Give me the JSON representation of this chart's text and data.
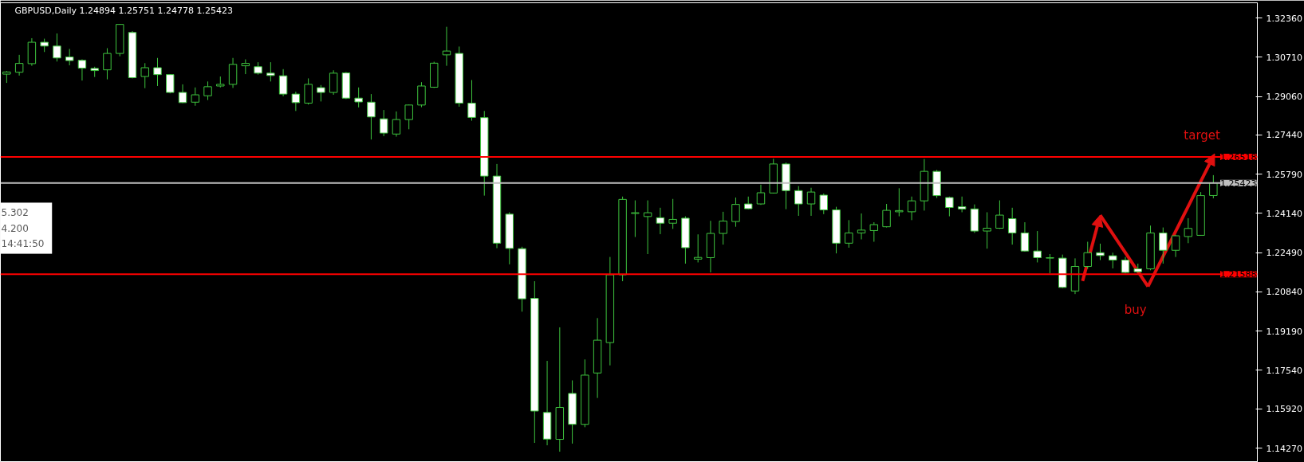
{
  "chart_data": {
    "type": "candlestick",
    "title": "GBPUSD,Daily  1.24894 1.25751 1.24778 1.25423",
    "categories": [
      null,
      null,
      null,
      null,
      null,
      null,
      null,
      null,
      null,
      null,
      null,
      null,
      null,
      null,
      null,
      null,
      null,
      null,
      null,
      null,
      null,
      null,
      null,
      null,
      null,
      null,
      null,
      null,
      null,
      null,
      null,
      null,
      null,
      null,
      null,
      null,
      null,
      null,
      null,
      null,
      null,
      null,
      null,
      null,
      null,
      null,
      null,
      null,
      null,
      null,
      null,
      null,
      null,
      null,
      null,
      null,
      null,
      null,
      null,
      null,
      null,
      null,
      null,
      null,
      null,
      null,
      null,
      null,
      null,
      null,
      null,
      null,
      null,
      null,
      null,
      null,
      null,
      null,
      null,
      null,
      null,
      null,
      null,
      null,
      null,
      null,
      null,
      null,
      null,
      null,
      null,
      null,
      null,
      null,
      null,
      null,
      null,
      null,
      null,
      null
    ],
    "ohlc": [
      [
        1.3,
        1.3013,
        1.2963,
        1.3009
      ],
      [
        1.3008,
        1.3081,
        1.2994,
        1.3045
      ],
      [
        1.3044,
        1.3151,
        1.3035,
        1.3134
      ],
      [
        1.3134,
        1.3149,
        1.3093,
        1.3118
      ],
      [
        1.3118,
        1.3171,
        1.3053,
        1.3068
      ],
      [
        1.3072,
        1.3106,
        1.3037,
        1.3057
      ],
      [
        1.3058,
        1.3062,
        1.2973,
        1.3025
      ],
      [
        1.3024,
        1.3031,
        1.2988,
        1.3015
      ],
      [
        1.3018,
        1.3109,
        1.2978,
        1.3087
      ],
      [
        1.3087,
        1.3211,
        1.3075,
        1.3209
      ],
      [
        1.3175,
        1.3181,
        1.2982,
        1.2985
      ],
      [
        1.299,
        1.3046,
        1.2941,
        1.3027
      ],
      [
        1.3027,
        1.3068,
        1.295,
        1.2998
      ],
      [
        1.2998,
        1.3,
        1.2919,
        1.2923
      ],
      [
        1.2923,
        1.2957,
        1.2878,
        1.288
      ],
      [
        1.2882,
        1.2944,
        1.2867,
        1.2913
      ],
      [
        1.2909,
        1.2969,
        1.2891,
        1.2947
      ],
      [
        1.295,
        1.299,
        1.2944,
        1.2957
      ],
      [
        1.2957,
        1.3068,
        1.2942,
        1.3041
      ],
      [
        1.3035,
        1.3062,
        1.3,
        1.3045
      ],
      [
        1.3031,
        1.305,
        1.2998,
        1.3004
      ],
      [
        1.3004,
        1.305,
        1.2969,
        1.2994
      ],
      [
        1.2993,
        1.3021,
        1.2907,
        1.2916
      ],
      [
        1.2916,
        1.2926,
        1.2845,
        1.288
      ],
      [
        1.2878,
        1.2982,
        1.2872,
        1.2957
      ],
      [
        1.2943,
        1.2954,
        1.2885,
        1.2923
      ],
      [
        1.2923,
        1.3016,
        1.2913,
        1.3004
      ],
      [
        1.3005,
        1.3009,
        1.2895,
        1.2899
      ],
      [
        1.2899,
        1.2944,
        1.286,
        1.2883
      ],
      [
        1.2882,
        1.2916,
        1.2725,
        1.282
      ],
      [
        1.2812,
        1.2849,
        1.2739,
        1.2752
      ],
      [
        1.2748,
        1.2843,
        1.2737,
        1.2809
      ],
      [
        1.2809,
        1.2872,
        1.2768,
        1.287
      ],
      [
        1.287,
        1.2966,
        1.2861,
        1.295
      ],
      [
        1.2945,
        1.3052,
        1.2942,
        1.3046
      ],
      [
        1.3081,
        1.3199,
        1.3035,
        1.3097
      ],
      [
        1.3087,
        1.3116,
        1.2863,
        1.2878
      ],
      [
        1.2878,
        1.2975,
        1.2804,
        1.2818
      ],
      [
        1.2817,
        1.2845,
        1.2489,
        1.2571
      ],
      [
        1.2571,
        1.2622,
        1.2268,
        1.2289
      ],
      [
        1.2411,
        1.2419,
        1.22,
        1.2267
      ],
      [
        1.2266,
        1.2274,
        1.2001,
        1.2055
      ],
      [
        1.2057,
        1.2129,
        1.1449,
        1.1583
      ],
      [
        1.1577,
        1.1794,
        1.1439,
        1.1465
      ],
      [
        1.1464,
        1.1935,
        1.1412,
        1.1598
      ],
      [
        1.1657,
        1.1712,
        1.1446,
        1.1527
      ],
      [
        1.1527,
        1.18,
        1.1515,
        1.1734
      ],
      [
        1.1743,
        1.1974,
        1.1638,
        1.1881
      ],
      [
        1.1871,
        1.2231,
        1.1775,
        1.2156
      ],
      [
        1.2156,
        1.2485,
        1.2129,
        1.2473
      ],
      [
        1.2414,
        1.2469,
        1.2315,
        1.2417
      ],
      [
        1.2401,
        1.2469,
        1.2243,
        1.2417
      ],
      [
        1.2396,
        1.2438,
        1.2327,
        1.2373
      ],
      [
        1.2373,
        1.2475,
        1.2349,
        1.2389
      ],
      [
        1.2394,
        1.2402,
        1.2203,
        1.227
      ],
      [
        1.2222,
        1.2326,
        1.2208,
        1.2229
      ],
      [
        1.2228,
        1.2383,
        1.2166,
        1.233
      ],
      [
        1.233,
        1.2421,
        1.2283,
        1.2382
      ],
      [
        1.238,
        1.2481,
        1.2358,
        1.2452
      ],
      [
        1.2454,
        1.2485,
        1.2432,
        1.2434
      ],
      [
        1.2454,
        1.2535,
        1.245,
        1.2501
      ],
      [
        1.25,
        1.2644,
        1.2498,
        1.2622
      ],
      [
        1.2622,
        1.2628,
        1.2432,
        1.251
      ],
      [
        1.251,
        1.2529,
        1.2404,
        1.2454
      ],
      [
        1.2454,
        1.2522,
        1.2404,
        1.2504
      ],
      [
        1.2491,
        1.2498,
        1.2411,
        1.2429
      ],
      [
        1.2429,
        1.2442,
        1.2246,
        1.2289
      ],
      [
        1.2289,
        1.2386,
        1.227,
        1.2332
      ],
      [
        1.2332,
        1.2414,
        1.2305,
        1.2344
      ],
      [
        1.2342,
        1.2377,
        1.2295,
        1.2367
      ],
      [
        1.2358,
        1.2454,
        1.2355,
        1.2427
      ],
      [
        1.2421,
        1.252,
        1.2402,
        1.2426
      ],
      [
        1.2421,
        1.2485,
        1.2386,
        1.2467
      ],
      [
        1.2467,
        1.2643,
        1.2426,
        1.2591
      ],
      [
        1.2591,
        1.2597,
        1.2479,
        1.2489
      ],
      [
        1.2481,
        1.2485,
        1.2402,
        1.2439
      ],
      [
        1.2442,
        1.2485,
        1.2419,
        1.2433
      ],
      [
        1.2433,
        1.2452,
        1.2332,
        1.234
      ],
      [
        1.234,
        1.2419,
        1.2266,
        1.2352
      ],
      [
        1.2352,
        1.2469,
        1.2349,
        1.2407
      ],
      [
        1.2392,
        1.2438,
        1.2283,
        1.2332
      ],
      [
        1.2332,
        1.2377,
        1.2253,
        1.2256
      ],
      [
        1.2256,
        1.234,
        1.2208,
        1.2228
      ],
      [
        1.2226,
        1.2243,
        1.2162,
        1.2228
      ],
      [
        1.2226,
        1.2241,
        1.21,
        1.2103
      ],
      [
        1.2088,
        1.2225,
        1.2075,
        1.2191
      ],
      [
        1.2191,
        1.2295,
        1.2181,
        1.2249
      ],
      [
        1.2249,
        1.2287,
        1.2218,
        1.2237
      ],
      [
        1.2236,
        1.2249,
        1.2183,
        1.2218
      ],
      [
        1.2218,
        1.2231,
        1.2162,
        1.2166
      ],
      [
        1.2181,
        1.2203,
        1.2166,
        1.2169
      ],
      [
        1.2181,
        1.2363,
        1.2175,
        1.2332
      ],
      [
        1.2332,
        1.2355,
        1.2203,
        1.2259
      ],
      [
        1.2259,
        1.2324,
        1.2231,
        1.232
      ],
      [
        1.2317,
        1.2394,
        1.2289,
        1.2351
      ],
      [
        1.2322,
        1.2504,
        1.232,
        1.2489
      ],
      [
        1.24894,
        1.25751,
        1.24778,
        1.25423
      ],
      null,
      null,
      null
    ],
    "color": "#3ec43e",
    "colors": [
      "#000000",
      "#000000",
      "#000000",
      "#ffffff",
      "#ffffff",
      "#ffffff",
      "#ffffff",
      "#ffffff",
      "#000000",
      "#000000",
      "#ffffff",
      "#000000",
      "#ffffff",
      "#ffffff",
      "#ffffff",
      "#000000",
      "#000000",
      "#000000",
      "#000000",
      "#000000",
      "#ffffff",
      "#ffffff",
      "#ffffff",
      "#ffffff",
      "#000000",
      "#ffffff",
      "#000000",
      "#ffffff",
      "#ffffff",
      "#ffffff",
      "#ffffff",
      "#000000",
      "#000000",
      "#000000",
      "#000000",
      "#000000",
      "#ffffff",
      "#ffffff",
      "#ffffff",
      "#ffffff",
      "#ffffff",
      "#ffffff",
      "#ffffff",
      "#ffffff",
      "#000000",
      "#ffffff",
      "#000000",
      "#000000",
      "#000000",
      "#000000",
      "#000000",
      "#000000",
      "#ffffff",
      "#000000",
      "#ffffff",
      "#000000",
      "#000000",
      "#000000",
      "#000000",
      "#ffffff",
      "#000000",
      "#000000",
      "#ffffff",
      "#ffffff",
      "#000000",
      "#ffffff",
      "#ffffff",
      "#000000",
      "#000000",
      "#000000",
      "#000000",
      "#000000",
      "#000000",
      "#000000",
      "#ffffff",
      "#ffffff",
      "#ffffff",
      "#ffffff",
      "#000000",
      "#000000",
      "#ffffff",
      "#ffffff",
      "#ffffff",
      "#000000",
      "#ffffff",
      "#000000",
      "#000000",
      "#ffffff",
      "#ffffff",
      "#ffffff",
      "#ffffff",
      "#000000",
      "#ffffff",
      "#000000",
      "#000000",
      "#000000",
      "#000000",
      null,
      null,
      null
    ],
    "ylim": [
      1.1367,
      1.33
    ],
    "yticks": [
      {
        "value": 1.3236,
        "label": "1.32360"
      },
      {
        "value": 1.3071,
        "label": "1.30710"
      },
      {
        "value": 1.2906,
        "label": "1.29060"
      },
      {
        "value": 1.2744,
        "label": "1.27440"
      },
      {
        "value": 1.2579,
        "label": "1.25790"
      },
      {
        "value": 1.2414,
        "label": "1.24140"
      },
      {
        "value": 1.2249,
        "label": "1.22490"
      },
      {
        "value": 1.2084,
        "label": "1.20840"
      },
      {
        "value": 1.1919,
        "label": "1.19190"
      },
      {
        "value": 1.1754,
        "label": "1.17540"
      },
      {
        "value": 1.1592,
        "label": "1.15920"
      },
      {
        "value": 1.1427,
        "label": "1.14270"
      }
    ],
    "ref_lines": [
      {
        "axis": "y",
        "value": 1.26518,
        "label": "1.26518",
        "color": "#ff0000"
      },
      {
        "axis": "y",
        "value": 1.21588,
        "label": "1.21588",
        "color": "#ff0000"
      },
      {
        "axis": "y",
        "value": 1.25423,
        "label": "1.25423",
        "color": "#c0c0c0"
      }
    ],
    "annotations": [
      "target",
      "buy",
      "5.302",
      "4.200",
      "14:41:50"
    ],
    "tick_labels": "y",
    "grid": false
  }
}
